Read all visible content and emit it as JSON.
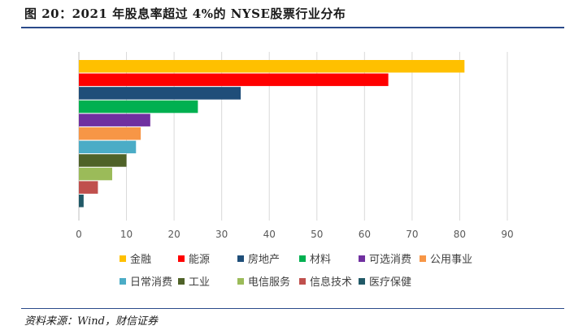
{
  "title": "图 20：2021 年股息率超过 4%的 NYSE股票行业分布",
  "source": "资料来源：Wind，财信证券",
  "chart_data": {
    "type": "bar",
    "orientation": "horizontal",
    "categories": [
      "金融",
      "能源",
      "房地产",
      "材料",
      "可选消费",
      "公用事业",
      "日常消费",
      "工业",
      "电信服务",
      "信息技术",
      "医疗保健"
    ],
    "values": [
      81,
      65,
      34,
      25,
      15,
      13,
      12,
      10,
      7,
      4,
      1
    ],
    "colors": [
      "#ffc000",
      "#ff0000",
      "#1f4e79",
      "#00b050",
      "#7030a0",
      "#f79646",
      "#4bacc6",
      "#4f6228",
      "#9bbb59",
      "#c0504d",
      "#215967"
    ],
    "xlim": [
      0,
      90
    ],
    "xticks": [
      "0",
      "10",
      "20",
      "30",
      "40",
      "50",
      "60",
      "70",
      "80",
      "90"
    ],
    "grid": "vertical",
    "legend_position": "bottom"
  }
}
